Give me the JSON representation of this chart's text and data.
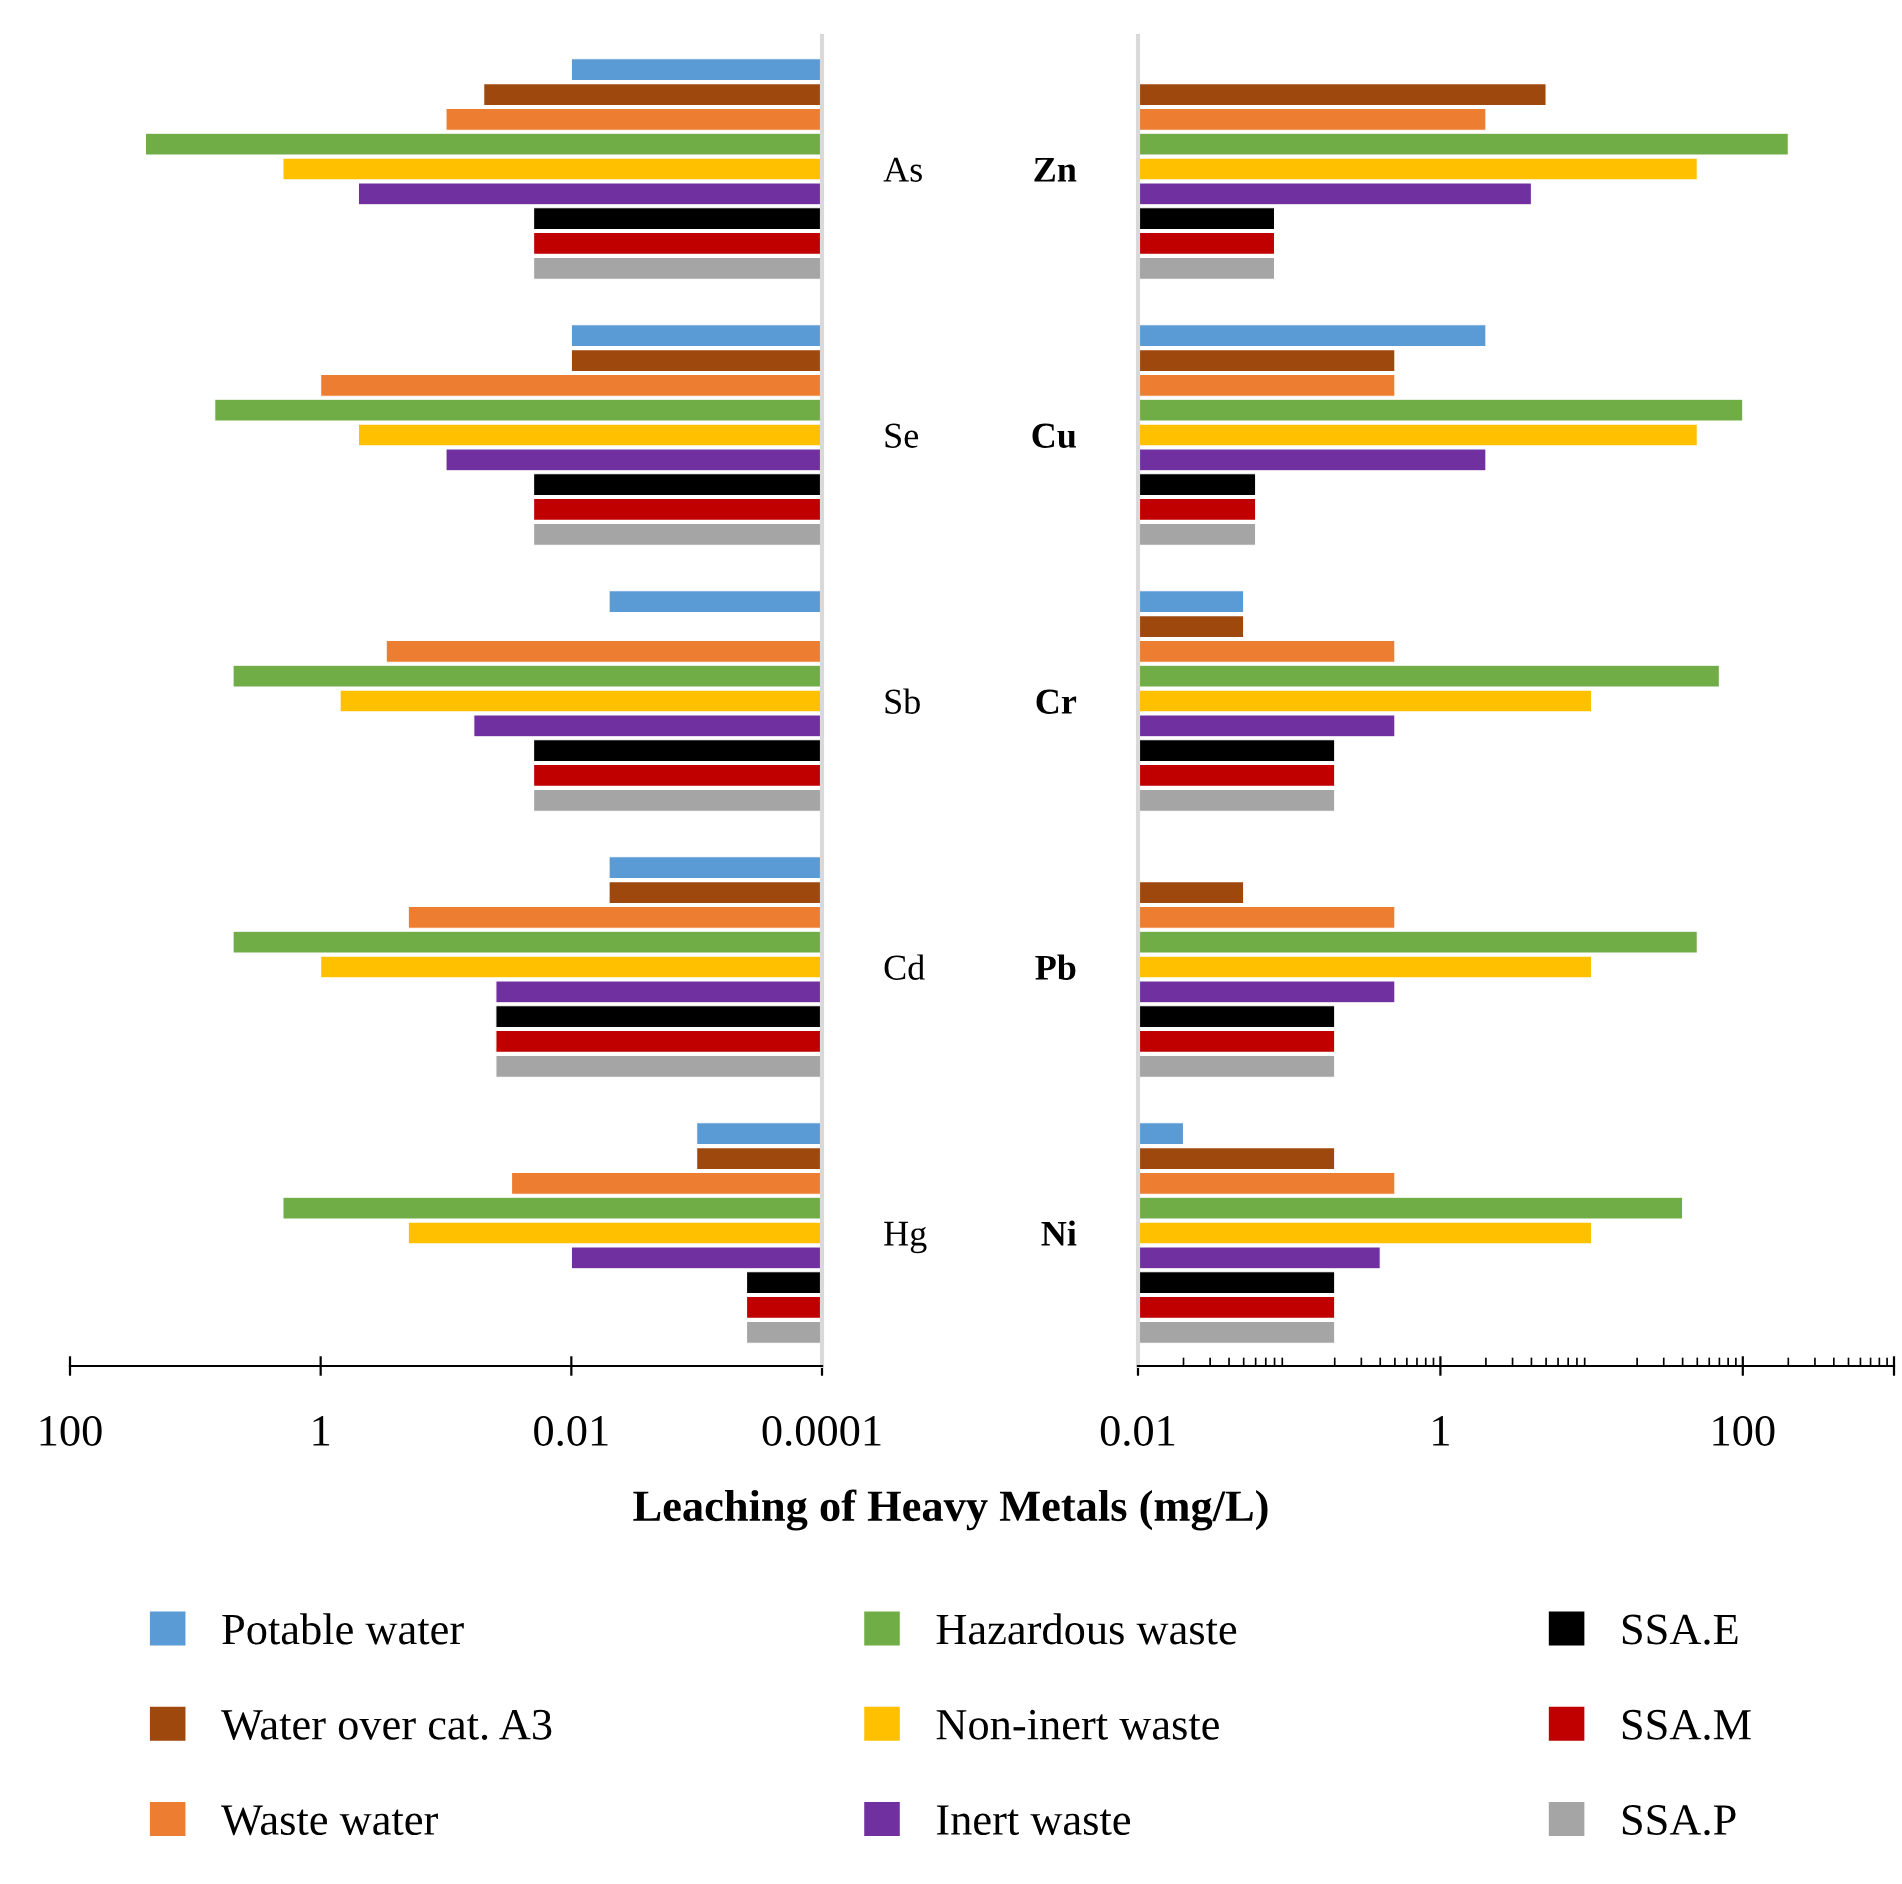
{
  "chart_data": [
    {
      "type": "bar",
      "orientation": "horizontal",
      "log": "x",
      "xlabel": "Leaching of Heavy Metals (mg/L)",
      "categories": [
        "As",
        "Se",
        "Sb",
        "Cd",
        "Hg"
      ],
      "xlim": [
        100,
        0.0001
      ],
      "xticks": [
        100,
        1,
        0.01,
        0.0001
      ],
      "legend": "bottom",
      "grid": false,
      "series": [
        {
          "name": "Potable water",
          "color": "#5b9bd5",
          "values": [
            0.01,
            0.01,
            0.005,
            0.005,
            0.001
          ]
        },
        {
          "name": "Water over cat. A3",
          "color": "#9e480e",
          "values": [
            0.05,
            0.01,
            null,
            0.005,
            0.001
          ]
        },
        {
          "name": "Waste water",
          "color": "#ed7d31",
          "values": [
            0.1,
            1,
            0.3,
            0.2,
            0.03
          ]
        },
        {
          "name": "Hazardous waste",
          "color": "#70ad47",
          "values": [
            25,
            7,
            5,
            5,
            2
          ]
        },
        {
          "name": "Non-inert waste",
          "color": "#ffc000",
          "values": [
            2,
            0.5,
            0.7,
            1,
            0.2
          ]
        },
        {
          "name": "Inert waste",
          "color": "#7030a0",
          "values": [
            0.5,
            0.1,
            0.06,
            0.04,
            0.01
          ]
        },
        {
          "name": "SSA.E",
          "color": "#000000",
          "values": [
            0.02,
            0.02,
            0.02,
            0.04,
            0.0004
          ]
        },
        {
          "name": "SSA.M",
          "color": "#c00000",
          "values": [
            0.02,
            0.02,
            0.02,
            0.04,
            0.0004
          ]
        },
        {
          "name": "SSA.P",
          "color": "#a5a5a5",
          "values": [
            0.02,
            0.02,
            0.02,
            0.04,
            0.0004
          ]
        }
      ]
    },
    {
      "type": "bar",
      "orientation": "horizontal",
      "log": "x",
      "categories": [
        "Zn",
        "Cu",
        "Cr",
        "Pb",
        "Ni"
      ],
      "xlim": [
        0.01,
        1000
      ],
      "xticks": [
        0.01,
        1,
        100,
        {
          "value": 1000,
          "label": null
        }
      ],
      "grid": false,
      "series": [
        {
          "color": "#5b9bd5",
          "values": [
            null,
            2,
            0.05,
            null,
            0.02
          ]
        },
        {
          "color": "#9e480e",
          "values": [
            5,
            0.5,
            0.05,
            0.05,
            0.2
          ]
        },
        {
          "color": "#ed7d31",
          "values": [
            2,
            0.5,
            0.5,
            0.5,
            0.5
          ]
        },
        {
          "color": "#70ad47",
          "values": [
            200,
            100,
            70,
            50,
            40
          ]
        },
        {
          "color": "#ffc000",
          "values": [
            50,
            50,
            10,
            10,
            10
          ]
        },
        {
          "color": "#7030a0",
          "values": [
            4,
            2,
            0.5,
            0.5,
            0.4
          ]
        },
        {
          "color": "#000000",
          "values": [
            0.08,
            0.06,
            0.2,
            0.2,
            0.2
          ]
        },
        {
          "color": "#c00000",
          "values": [
            0.08,
            0.06,
            0.2,
            0.2,
            0.2
          ]
        },
        {
          "color": "#a5a5a5",
          "values": [
            0.08,
            0.06,
            0.2,
            0.2,
            0.2
          ]
        }
      ]
    }
  ]
}
